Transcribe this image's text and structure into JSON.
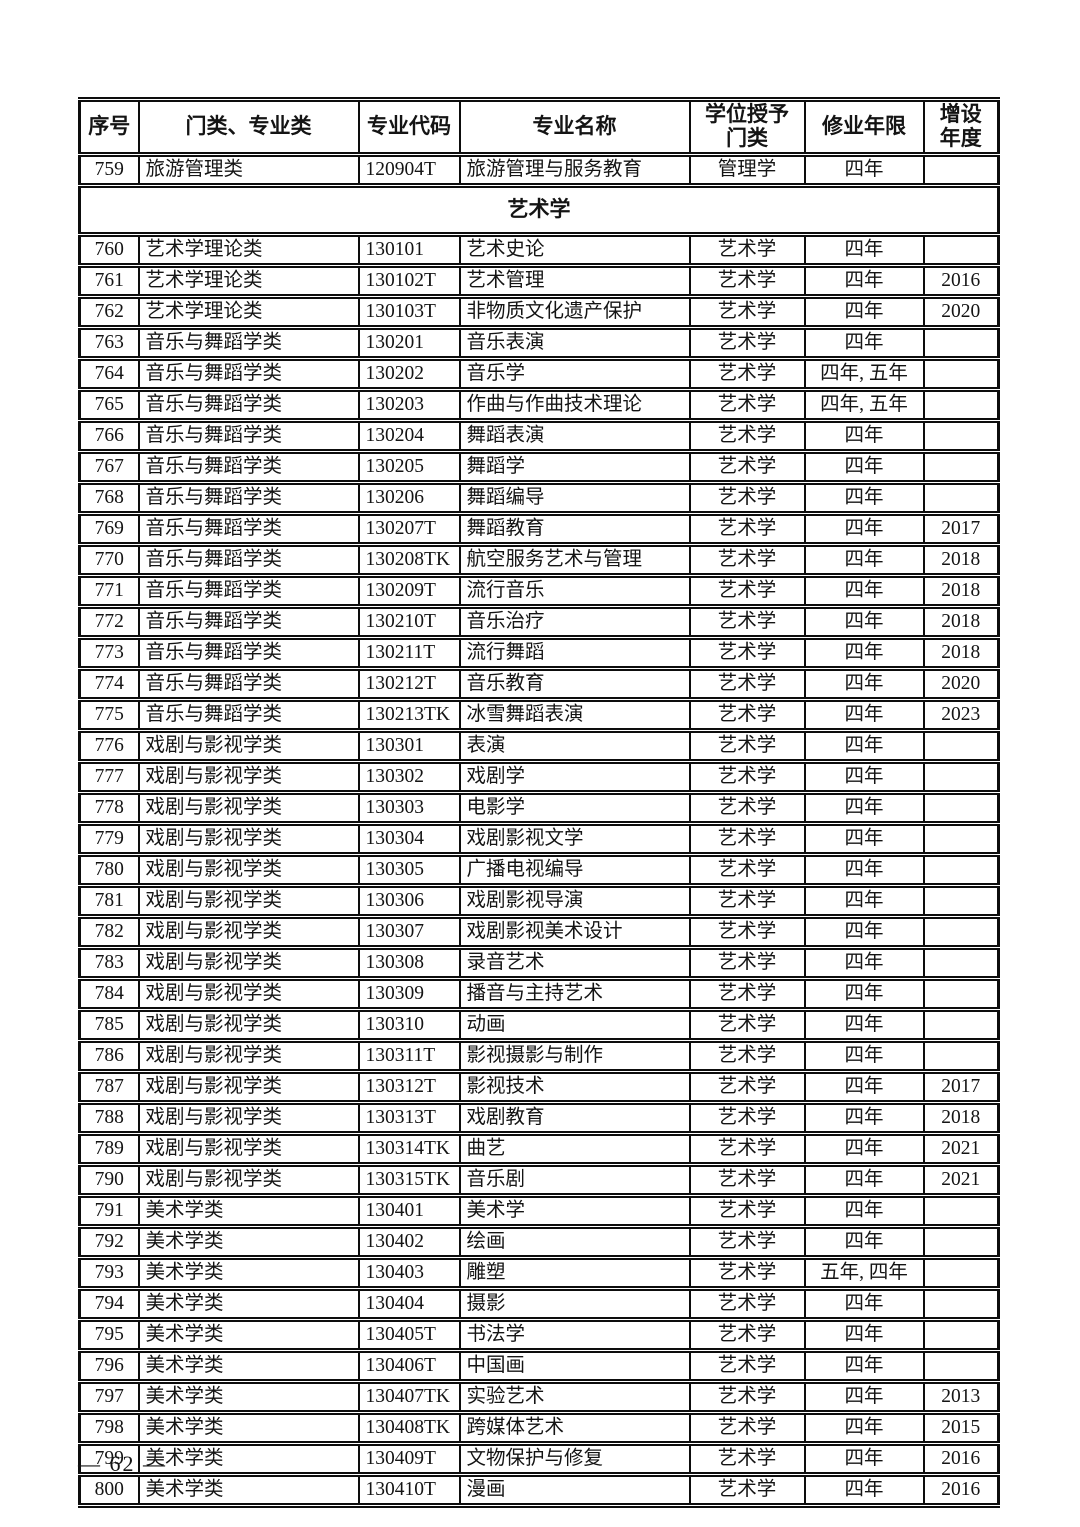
{
  "table": {
    "columns": [
      "序号",
      "门类、专业类",
      "专业代码",
      "专业名称",
      "学位授予\n门类",
      "修业年限",
      "增设\n年度"
    ],
    "rows": [
      {
        "type": "data",
        "cells": [
          "759",
          "旅游管理类",
          "120904T",
          "旅游管理与服务教育",
          "管理学",
          "四年",
          ""
        ]
      },
      {
        "type": "section",
        "label": "艺术学"
      },
      {
        "type": "data",
        "cells": [
          "760",
          "艺术学理论类",
          "130101",
          "艺术史论",
          "艺术学",
          "四年",
          ""
        ]
      },
      {
        "type": "data",
        "cells": [
          "761",
          "艺术学理论类",
          "130102T",
          "艺术管理",
          "艺术学",
          "四年",
          "2016"
        ]
      },
      {
        "type": "data",
        "cells": [
          "762",
          "艺术学理论类",
          "130103T",
          "非物质文化遗产保护",
          "艺术学",
          "四年",
          "2020"
        ]
      },
      {
        "type": "data",
        "cells": [
          "763",
          "音乐与舞蹈学类",
          "130201",
          "音乐表演",
          "艺术学",
          "四年",
          ""
        ]
      },
      {
        "type": "data",
        "cells": [
          "764",
          "音乐与舞蹈学类",
          "130202",
          "音乐学",
          "艺术学",
          "四年, 五年",
          ""
        ]
      },
      {
        "type": "data",
        "cells": [
          "765",
          "音乐与舞蹈学类",
          "130203",
          "作曲与作曲技术理论",
          "艺术学",
          "四年, 五年",
          ""
        ]
      },
      {
        "type": "data",
        "cells": [
          "766",
          "音乐与舞蹈学类",
          "130204",
          "舞蹈表演",
          "艺术学",
          "四年",
          ""
        ]
      },
      {
        "type": "data",
        "cells": [
          "767",
          "音乐与舞蹈学类",
          "130205",
          "舞蹈学",
          "艺术学",
          "四年",
          ""
        ]
      },
      {
        "type": "data",
        "cells": [
          "768",
          "音乐与舞蹈学类",
          "130206",
          "舞蹈编导",
          "艺术学",
          "四年",
          ""
        ]
      },
      {
        "type": "data",
        "cells": [
          "769",
          "音乐与舞蹈学类",
          "130207T",
          "舞蹈教育",
          "艺术学",
          "四年",
          "2017"
        ]
      },
      {
        "type": "data",
        "cells": [
          "770",
          "音乐与舞蹈学类",
          "130208TK",
          "航空服务艺术与管理",
          "艺术学",
          "四年",
          "2018"
        ]
      },
      {
        "type": "data",
        "cells": [
          "771",
          "音乐与舞蹈学类",
          "130209T",
          "流行音乐",
          "艺术学",
          "四年",
          "2018"
        ]
      },
      {
        "type": "data",
        "cells": [
          "772",
          "音乐与舞蹈学类",
          "130210T",
          "音乐治疗",
          "艺术学",
          "四年",
          "2018"
        ]
      },
      {
        "type": "data",
        "cells": [
          "773",
          "音乐与舞蹈学类",
          "130211T",
          "流行舞蹈",
          "艺术学",
          "四年",
          "2018"
        ]
      },
      {
        "type": "data",
        "cells": [
          "774",
          "音乐与舞蹈学类",
          "130212T",
          "音乐教育",
          "艺术学",
          "四年",
          "2020"
        ]
      },
      {
        "type": "data",
        "cells": [
          "775",
          "音乐与舞蹈学类",
          "130213TK",
          "冰雪舞蹈表演",
          "艺术学",
          "四年",
          "2023"
        ]
      },
      {
        "type": "data",
        "cells": [
          "776",
          "戏剧与影视学类",
          "130301",
          "表演",
          "艺术学",
          "四年",
          ""
        ]
      },
      {
        "type": "data",
        "cells": [
          "777",
          "戏剧与影视学类",
          "130302",
          "戏剧学",
          "艺术学",
          "四年",
          ""
        ]
      },
      {
        "type": "data",
        "cells": [
          "778",
          "戏剧与影视学类",
          "130303",
          "电影学",
          "艺术学",
          "四年",
          ""
        ]
      },
      {
        "type": "data",
        "cells": [
          "779",
          "戏剧与影视学类",
          "130304",
          "戏剧影视文学",
          "艺术学",
          "四年",
          ""
        ]
      },
      {
        "type": "data",
        "cells": [
          "780",
          "戏剧与影视学类",
          "130305",
          "广播电视编导",
          "艺术学",
          "四年",
          ""
        ]
      },
      {
        "type": "data",
        "cells": [
          "781",
          "戏剧与影视学类",
          "130306",
          "戏剧影视导演",
          "艺术学",
          "四年",
          ""
        ]
      },
      {
        "type": "data",
        "cells": [
          "782",
          "戏剧与影视学类",
          "130307",
          "戏剧影视美术设计",
          "艺术学",
          "四年",
          ""
        ]
      },
      {
        "type": "data",
        "cells": [
          "783",
          "戏剧与影视学类",
          "130308",
          "录音艺术",
          "艺术学",
          "四年",
          ""
        ]
      },
      {
        "type": "data",
        "cells": [
          "784",
          "戏剧与影视学类",
          "130309",
          "播音与主持艺术",
          "艺术学",
          "四年",
          ""
        ]
      },
      {
        "type": "data",
        "cells": [
          "785",
          "戏剧与影视学类",
          "130310",
          "动画",
          "艺术学",
          "四年",
          ""
        ]
      },
      {
        "type": "data",
        "cells": [
          "786",
          "戏剧与影视学类",
          "130311T",
          "影视摄影与制作",
          "艺术学",
          "四年",
          ""
        ]
      },
      {
        "type": "data",
        "cells": [
          "787",
          "戏剧与影视学类",
          "130312T",
          "影视技术",
          "艺术学",
          "四年",
          "2017"
        ]
      },
      {
        "type": "data",
        "cells": [
          "788",
          "戏剧与影视学类",
          "130313T",
          "戏剧教育",
          "艺术学",
          "四年",
          "2018"
        ]
      },
      {
        "type": "data",
        "cells": [
          "789",
          "戏剧与影视学类",
          "130314TK",
          "曲艺",
          "艺术学",
          "四年",
          "2021"
        ]
      },
      {
        "type": "data",
        "cells": [
          "790",
          "戏剧与影视学类",
          "130315TK",
          "音乐剧",
          "艺术学",
          "四年",
          "2021"
        ]
      },
      {
        "type": "data",
        "cells": [
          "791",
          "美术学类",
          "130401",
          "美术学",
          "艺术学",
          "四年",
          ""
        ]
      },
      {
        "type": "data",
        "cells": [
          "792",
          "美术学类",
          "130402",
          "绘画",
          "艺术学",
          "四年",
          ""
        ]
      },
      {
        "type": "data",
        "cells": [
          "793",
          "美术学类",
          "130403",
          "雕塑",
          "艺术学",
          "五年, 四年",
          ""
        ]
      },
      {
        "type": "data",
        "cells": [
          "794",
          "美术学类",
          "130404",
          "摄影",
          "艺术学",
          "四年",
          ""
        ]
      },
      {
        "type": "data",
        "cells": [
          "795",
          "美术学类",
          "130405T",
          "书法学",
          "艺术学",
          "四年",
          ""
        ]
      },
      {
        "type": "data",
        "cells": [
          "796",
          "美术学类",
          "130406T",
          "中国画",
          "艺术学",
          "四年",
          ""
        ]
      },
      {
        "type": "data",
        "cells": [
          "797",
          "美术学类",
          "130407TK",
          "实验艺术",
          "艺术学",
          "四年",
          "2013"
        ]
      },
      {
        "type": "data",
        "cells": [
          "798",
          "美术学类",
          "130408TK",
          "跨媒体艺术",
          "艺术学",
          "四年",
          "2015"
        ]
      },
      {
        "type": "data",
        "cells": [
          "799",
          "美术学类",
          "130409T",
          "文物保护与修复",
          "艺术学",
          "四年",
          "2016"
        ]
      },
      {
        "type": "data",
        "cells": [
          "800",
          "美术学类",
          "130410T",
          "漫画",
          "艺术学",
          "四年",
          "2016"
        ]
      }
    ]
  },
  "footer": {
    "page_label": "— 62 —"
  }
}
